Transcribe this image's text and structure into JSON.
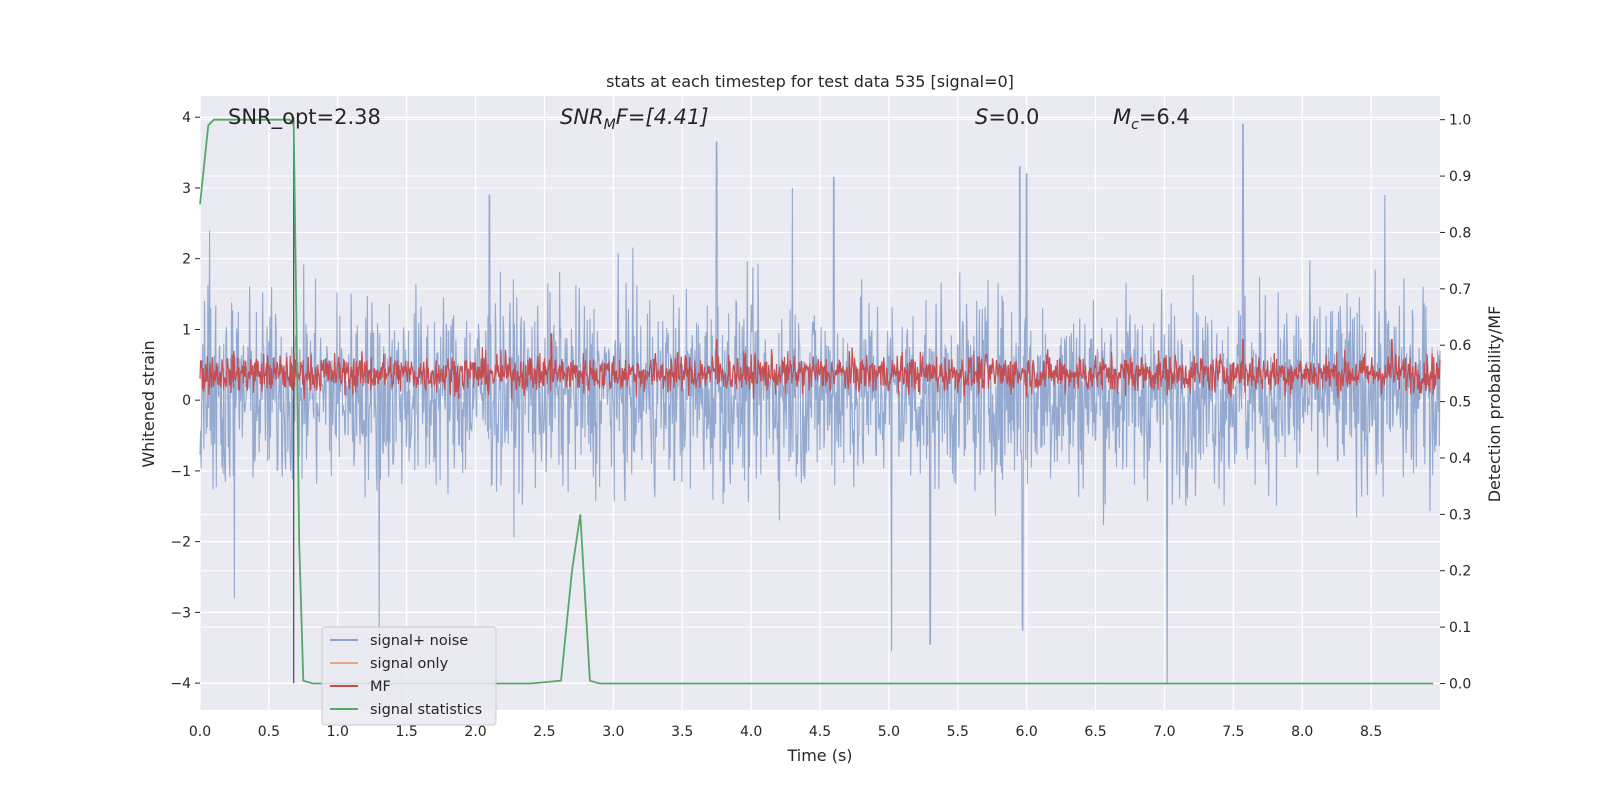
{
  "chart_data": {
    "type": "line",
    "title": "stats at each timestep for test data 535 [signal=0]",
    "xlabel": "Time (s)",
    "ylabel_left": "Whitened strain",
    "ylabel_right": "Detection probability/MF",
    "xlim": [
      0,
      9
    ],
    "ylim_left": [
      -4.38,
      4.3
    ],
    "ylim_right": [
      -0.047,
      1.042
    ],
    "xticks": [
      0.0,
      0.5,
      1.0,
      1.5,
      2.0,
      2.5,
      3.0,
      3.5,
      4.0,
      4.5,
      5.0,
      5.5,
      6.0,
      6.5,
      7.0,
      7.5,
      8.0,
      8.5
    ],
    "xtick_labels": [
      "0.0",
      "0.5",
      "1.0",
      "1.5",
      "2.0",
      "2.5",
      "3.0",
      "3.5",
      "4.0",
      "4.5",
      "5.0",
      "5.5",
      "6.0",
      "6.5",
      "7.0",
      "7.5",
      "8.0",
      "8.5"
    ],
    "yticks_left": [
      4,
      3,
      2,
      1,
      0,
      -1,
      -2,
      -3,
      -4
    ],
    "ytick_labels_left": [
      "4",
      "3",
      "2",
      "1",
      "0",
      "−1",
      "−2",
      "−3",
      "−4"
    ],
    "yticks_right": [
      1.0,
      0.9,
      0.8,
      0.7,
      0.6,
      0.5,
      0.4,
      0.3,
      0.2,
      0.1,
      0.0
    ],
    "ytick_labels_right": [
      "1.0",
      "0.9",
      "0.8",
      "0.7",
      "0.6",
      "0.5",
      "0.4",
      "0.3",
      "0.2",
      "0.1",
      "0.0"
    ],
    "grid": true,
    "legend_position": "lower-left",
    "annotations": {
      "snr_opt": "SNR_opt=2.38",
      "snr_mf_prefix": "SNR",
      "snr_mf_sub": "M",
      "snr_mf_rest": "F=[4.41]",
      "s_var": "S",
      "s_val": "=0.0",
      "mc_var": "M",
      "mc_sub": "c",
      "mc_val": "=6.4"
    },
    "series": [
      {
        "name": "signal+ noise",
        "color": "#8fa5cc",
        "axis": "left",
        "style": "dense noise trace",
        "x_range": [
          0,
          9
        ],
        "typical_envelope": [
          -1.7,
          2.2
        ],
        "peaks": [
          [
            0.07,
            2.4
          ],
          [
            0.25,
            -2.8
          ],
          [
            1.3,
            -3.2
          ],
          [
            2.1,
            2.9
          ],
          [
            3.75,
            3.65
          ],
          [
            4.3,
            3.0
          ],
          [
            4.6,
            3.15
          ],
          [
            5.02,
            -3.55
          ],
          [
            5.3,
            -3.45
          ],
          [
            5.95,
            3.3
          ],
          [
            5.97,
            -3.25
          ],
          [
            6.0,
            3.2
          ],
          [
            7.02,
            -4.0
          ],
          [
            7.57,
            3.9
          ],
          [
            8.6,
            2.9
          ]
        ]
      },
      {
        "name": "signal only",
        "color": "#e9a48a",
        "axis": "left",
        "values": []
      },
      {
        "name": "MF",
        "color": "#c44e52",
        "axis": "right",
        "style": "dense trace",
        "x_range": [
          0,
          9
        ],
        "typical_range": [
          0.51,
          0.59
        ],
        "peaks": [
          [
            2.55,
            0.62
          ],
          [
            3.75,
            0.61
          ],
          [
            7.57,
            0.61
          ],
          [
            8.65,
            0.61
          ]
        ]
      },
      {
        "name": "signal statistics",
        "color": "#55a868",
        "axis": "right",
        "x": [
          0.0,
          0.06,
          0.1,
          0.2,
          0.3,
          0.4,
          0.5,
          0.6,
          0.65,
          0.68,
          0.7,
          0.72,
          0.75,
          0.82,
          0.9,
          1.0,
          1.5,
          2.0,
          2.4,
          2.62,
          2.7,
          2.76,
          2.83,
          2.9,
          3.5,
          4.0,
          5.0,
          6.0,
          7.0,
          8.0,
          8.95
        ],
        "y": [
          0.85,
          0.99,
          1.0,
          1.0,
          1.0,
          1.0,
          1.0,
          1.0,
          1.0,
          0.99,
          0.65,
          0.25,
          0.005,
          0.0,
          0.0,
          0.0,
          0.0,
          0.0,
          0.0,
          0.005,
          0.2,
          0.3,
          0.005,
          0.0,
          0.0,
          0.0,
          0.0,
          0.0,
          0.0,
          0.0,
          0.0
        ]
      }
    ],
    "marker_line_x": 0.68
  }
}
